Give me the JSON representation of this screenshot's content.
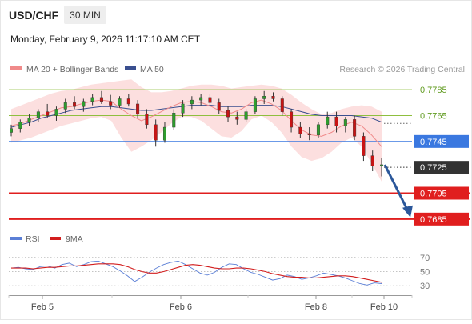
{
  "header": {
    "symbol": "USD/CHF",
    "timeframe": "30 MIN",
    "datetime": "Monday, February 9, 2026 11:17:10 AM CET"
  },
  "legend": {
    "ma20_label": "MA 20 + Bollinger Bands",
    "ma50_label": "MA 50",
    "copyright": "Research © 2026 Trading Central"
  },
  "rsi_legend": {
    "rsi_label": "RSI",
    "ma9_label": "9MA"
  },
  "colors": {
    "bull": "#2e9e2e",
    "bear": "#c81414",
    "ma20": "#f08a8a",
    "ma50": "#3a4f8f",
    "band": "#fbd9d9",
    "resistance": "#8fbf3f",
    "pivot": "#3a78e0",
    "support": "#e01e1e",
    "arrow": "#2b579a",
    "rsi": "#5b7fd6",
    "rsi_ma": "#d21e1e",
    "current": "#333333"
  },
  "chart_data": [
    {
      "type": "candlestick",
      "title": "USD/CHF 30 MIN",
      "x_tick_labels": [
        "Feb 5",
        "Feb 6",
        "Feb 8",
        "Feb 10"
      ],
      "ylim": [
        0.7675,
        0.7795
      ],
      "series": [
        {
          "name": "MA 20 + Bollinger Bands"
        },
        {
          "name": "MA 50"
        }
      ],
      "levels": [
        {
          "value": 0.7785,
          "label": "0.7785",
          "kind": "resistance"
        },
        {
          "value": 0.7765,
          "label": "0.7765",
          "kind": "resistance"
        },
        {
          "value": 0.7745,
          "label": "0.7745",
          "kind": "pivot"
        },
        {
          "value": 0.7725,
          "label": "0.7725",
          "kind": "current"
        },
        {
          "value": 0.7705,
          "label": "0.7705",
          "kind": "support"
        },
        {
          "value": 0.7685,
          "label": "0.7685",
          "kind": "support"
        }
      ],
      "ma20": [
        0.7757,
        0.7759,
        0.7762,
        0.7765,
        0.7768,
        0.7771,
        0.7772,
        0.7774,
        0.7776,
        0.7777,
        0.7776,
        0.777,
        0.7765,
        0.7761,
        0.7764,
        0.7768,
        0.7772,
        0.7775,
        0.7776,
        0.7775,
        0.7772,
        0.7768,
        0.7767,
        0.777,
        0.7775,
        0.7777,
        0.7774,
        0.7769,
        0.7761,
        0.7754,
        0.775,
        0.7749,
        0.7752,
        0.7757,
        0.776,
        0.7757,
        0.775,
        0.7741
      ],
      "ma50": [
        0.7756,
        0.7758,
        0.776,
        0.7763,
        0.7765,
        0.7767,
        0.7769,
        0.777,
        0.7771,
        0.7772,
        0.7772,
        0.7771,
        0.777,
        0.7769,
        0.7769,
        0.777,
        0.7771,
        0.7772,
        0.7773,
        0.7773,
        0.7773,
        0.7772,
        0.7772,
        0.7772,
        0.7773,
        0.7773,
        0.7773,
        0.7772,
        0.777,
        0.7768,
        0.7766,
        0.7765,
        0.7765,
        0.7765,
        0.7765,
        0.7764,
        0.7763,
        0.776
      ],
      "bb_upper": [
        0.777,
        0.7773,
        0.7776,
        0.7779,
        0.7782,
        0.7784,
        0.7785,
        0.7787,
        0.7789,
        0.779,
        0.7791,
        0.7792,
        0.7793,
        0.7787,
        0.7783,
        0.7783,
        0.7784,
        0.7786,
        0.7788,
        0.7789,
        0.7789,
        0.7788,
        0.7786,
        0.7787,
        0.7788,
        0.7789,
        0.7788,
        0.7786,
        0.7781,
        0.7775,
        0.777,
        0.7766,
        0.7767,
        0.777,
        0.7772,
        0.7773,
        0.7772,
        0.7768
      ],
      "bb_lower": [
        0.7744,
        0.7746,
        0.7748,
        0.7751,
        0.7754,
        0.7757,
        0.7759,
        0.7761,
        0.7763,
        0.7764,
        0.7761,
        0.7748,
        0.7737,
        0.7741,
        0.7746,
        0.7752,
        0.7759,
        0.7764,
        0.7764,
        0.7761,
        0.7755,
        0.7749,
        0.7748,
        0.7753,
        0.7762,
        0.7765,
        0.776,
        0.7752,
        0.7741,
        0.7733,
        0.773,
        0.7732,
        0.7737,
        0.7744,
        0.7748,
        0.7741,
        0.7728,
        0.7714
      ],
      "candles": [
        [
          0.7752,
          0.7758,
          0.7749,
          0.7755
        ],
        [
          0.7755,
          0.7762,
          0.7752,
          0.776
        ],
        [
          0.776,
          0.7766,
          0.7757,
          0.7763
        ],
        [
          0.7763,
          0.777,
          0.776,
          0.7768
        ],
        [
          0.7768,
          0.7774,
          0.7763,
          0.7765
        ],
        [
          0.7765,
          0.7772,
          0.7761,
          0.777
        ],
        [
          0.777,
          0.7778,
          0.7767,
          0.7775
        ],
        [
          0.7775,
          0.778,
          0.777,
          0.7772
        ],
        [
          0.7772,
          0.7778,
          0.7768,
          0.7776
        ],
        [
          0.7776,
          0.7782,
          0.7773,
          0.7779
        ],
        [
          0.7779,
          0.7784,
          0.7774,
          0.7776
        ],
        [
          0.7776,
          0.7781,
          0.777,
          0.7773
        ],
        [
          0.7773,
          0.778,
          0.7771,
          0.7778
        ],
        [
          0.7778,
          0.7782,
          0.7772,
          0.7774
        ],
        [
          0.7774,
          0.7777,
          0.7763,
          0.7766
        ],
        [
          0.7766,
          0.777,
          0.7755,
          0.7758
        ],
        [
          0.7758,
          0.7762,
          0.7741,
          0.7746
        ],
        [
          0.7746,
          0.776,
          0.7744,
          0.7756
        ],
        [
          0.7756,
          0.777,
          0.7754,
          0.7767
        ],
        [
          0.7767,
          0.7777,
          0.7764,
          0.7774
        ],
        [
          0.7774,
          0.778,
          0.777,
          0.7777
        ],
        [
          0.7777,
          0.7782,
          0.7773,
          0.7779
        ],
        [
          0.7779,
          0.7782,
          0.7772,
          0.7775
        ],
        [
          0.7775,
          0.7778,
          0.7766,
          0.7769
        ],
        [
          0.7769,
          0.7772,
          0.776,
          0.7764
        ],
        [
          0.7764,
          0.7768,
          0.7758,
          0.7762
        ],
        [
          0.7762,
          0.777,
          0.776,
          0.7768
        ],
        [
          0.7768,
          0.778,
          0.7766,
          0.7778
        ],
        [
          0.7778,
          0.7784,
          0.7774,
          0.778
        ],
        [
          0.778,
          0.7783,
          0.7776,
          0.7778
        ],
        [
          0.7778,
          0.778,
          0.7765,
          0.7768
        ],
        [
          0.7768,
          0.777,
          0.7752,
          0.7756
        ],
        [
          0.7756,
          0.776,
          0.7748,
          0.7751
        ],
        [
          0.7751,
          0.7756,
          0.7746,
          0.775
        ],
        [
          0.775,
          0.776,
          0.7748,
          0.7758
        ],
        [
          0.7758,
          0.7768,
          0.7755,
          0.7764
        ],
        [
          0.7764,
          0.7768,
          0.7752,
          0.7757
        ],
        [
          0.7757,
          0.7764,
          0.7752,
          0.7762
        ],
        [
          0.7762,
          0.7765,
          0.7746,
          0.7749
        ],
        [
          0.7749,
          0.7752,
          0.773,
          0.7734
        ],
        [
          0.7734,
          0.7738,
          0.7722,
          0.7726
        ],
        [
          0.7726,
          0.7732,
          0.7718,
          0.7727
        ]
      ]
    },
    {
      "type": "line",
      "title": "RSI",
      "y_tick_labels": [
        "70",
        "50",
        "30"
      ],
      "ylim": [
        20,
        80
      ],
      "series": [
        {
          "name": "RSI",
          "values": [
            55,
            56,
            54,
            53,
            57,
            58,
            55,
            60,
            62,
            57,
            60,
            64,
            65,
            61,
            57,
            51,
            44,
            36,
            42,
            49,
            55,
            60,
            63,
            65,
            60,
            54,
            48,
            45,
            49,
            56,
            61,
            60,
            54,
            49,
            46,
            42,
            38,
            40,
            45,
            43,
            39,
            41,
            44,
            48,
            46,
            44,
            41,
            37,
            33,
            31,
            34,
            33
          ]
        },
        {
          "name": "9MA",
          "values": [
            55,
            55,
            55,
            54,
            55,
            56,
            56,
            57,
            58,
            58,
            59,
            60,
            61,
            61,
            61,
            60,
            57,
            53,
            50,
            48,
            48,
            50,
            53,
            56,
            59,
            60,
            59,
            57,
            55,
            54,
            54,
            55,
            55,
            54,
            52,
            50,
            47,
            45,
            43,
            42,
            42,
            41,
            41,
            42,
            43,
            44,
            44,
            43,
            41,
            39,
            37,
            35
          ]
        }
      ]
    }
  ]
}
